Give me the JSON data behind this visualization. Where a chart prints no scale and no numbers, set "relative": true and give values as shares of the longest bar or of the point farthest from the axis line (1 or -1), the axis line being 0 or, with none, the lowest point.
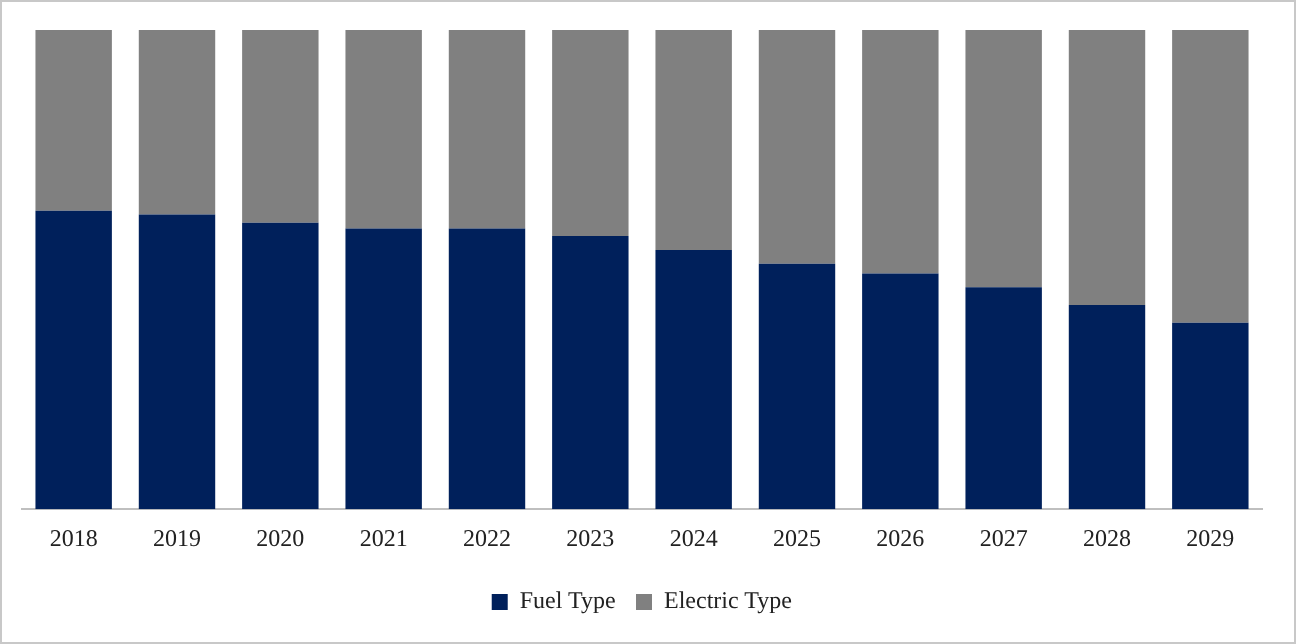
{
  "chart_data": {
    "type": "bar",
    "stacked": true,
    "relative": true,
    "grid": false,
    "legend": "bottom",
    "categories": [
      "2018",
      "2019",
      "2020",
      "2021",
      "2022",
      "2023",
      "2024",
      "2025",
      "2026",
      "2027",
      "2028",
      "2029"
    ],
    "series": [
      {
        "name": "Fuel Type",
        "color": "#00205b",
        "values": [
          0.623,
          0.615,
          0.598,
          0.586,
          0.586,
          0.57,
          0.541,
          0.512,
          0.492,
          0.463,
          0.426,
          0.389
        ]
      },
      {
        "name": "Electric Type",
        "color": "#808080",
        "values": [
          0.377,
          0.385,
          0.402,
          0.414,
          0.414,
          0.43,
          0.459,
          0.488,
          0.508,
          0.537,
          0.574,
          0.611
        ]
      }
    ]
  }
}
